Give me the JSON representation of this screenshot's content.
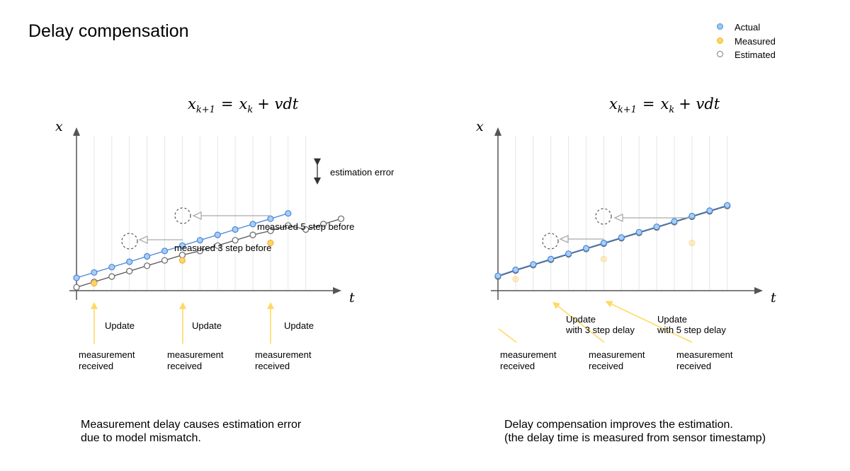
{
  "title": "Delay compensation",
  "legend": [
    {
      "label": "Actual",
      "color": "#9ec5f0",
      "stroke": "#4a90d9"
    },
    {
      "label": "Measured",
      "color": "#ffd36b",
      "stroke": "#f2b630"
    },
    {
      "label": "Estimated",
      "color": "#ffffff",
      "stroke": "#777777"
    }
  ],
  "colors": {
    "actual": "#4a86d6",
    "measured": "#f5b731",
    "estimated": "#555555",
    "arrow_yellow": "#ffd966",
    "arrow_gray": "#aaaaaa",
    "grid": "#e6e6e6"
  },
  "formula": {
    "lhs": "x",
    "lhs_sub": "k+1",
    "eq": "=",
    "rhs_var": "x",
    "rhs_sub": "k",
    "rhs_rest": "+ vdt"
  },
  "axis_labels": {
    "y": "x",
    "x": "t"
  },
  "left": {
    "estimation_error": "estimation error",
    "measured_5": "measured 5 step before",
    "measured_3": "measured 3 step before",
    "updates": [
      "Update",
      "Update",
      "Update"
    ],
    "received": [
      [
        "measurement",
        "received"
      ],
      [
        "measurement",
        "received"
      ],
      [
        "measurement",
        "received"
      ]
    ],
    "caption": [
      "Measurement delay causes estimation error",
      "due to model mismatch."
    ],
    "actual": [
      [
        0,
        0.9
      ],
      [
        1,
        1.3
      ],
      [
        2,
        1.7
      ],
      [
        3,
        2.1
      ],
      [
        4,
        2.5
      ],
      [
        5,
        2.9
      ],
      [
        6,
        3.3
      ],
      [
        7,
        3.7
      ],
      [
        8,
        4.1
      ],
      [
        9,
        4.5
      ],
      [
        10,
        4.9
      ],
      [
        11,
        5.3
      ],
      [
        12,
        5.7
      ]
    ],
    "estimated": [
      [
        0,
        0.2
      ],
      [
        1,
        0.6
      ],
      [
        2,
        1.0
      ],
      [
        3,
        1.4
      ],
      [
        4,
        1.8
      ],
      [
        5,
        2.2
      ],
      [
        6,
        2.6
      ],
      [
        7,
        2.9
      ],
      [
        8,
        3.3
      ],
      [
        9,
        3.7
      ],
      [
        10,
        4.1
      ],
      [
        11,
        4.4
      ],
      [
        12,
        4.8
      ],
      [
        13,
        4.5
      ],
      [
        14,
        4.9
      ],
      [
        15,
        5.3
      ]
    ],
    "measured": [
      [
        1,
        0.5
      ],
      [
        6,
        2.2
      ],
      [
        11,
        3.5
      ]
    ]
  },
  "right": {
    "updates": [
      [
        "Update",
        "with 3 step delay"
      ],
      [
        "Update",
        "with 5 step delay"
      ]
    ],
    "received": [
      [
        "measurement",
        "received"
      ],
      [
        "measurement",
        "received"
      ],
      [
        "measurement",
        "received"
      ]
    ],
    "caption": [
      "Delay compensation improves the estimation.",
      "(the delay time is measured from sensor timestamp)"
    ],
    "actual": [
      [
        0,
        1.05
      ],
      [
        1,
        1.5
      ],
      [
        2,
        1.9
      ],
      [
        3,
        2.3
      ],
      [
        4,
        2.7
      ],
      [
        5,
        3.1
      ],
      [
        6,
        3.5
      ],
      [
        7,
        3.9
      ],
      [
        8,
        4.3
      ],
      [
        9,
        4.7
      ],
      [
        10,
        5.1
      ],
      [
        11,
        5.5
      ],
      [
        12,
        5.9
      ],
      [
        13,
        6.3
      ]
    ],
    "estimated": [
      [
        0,
        1.0
      ],
      [
        1,
        1.45
      ],
      [
        2,
        1.85
      ],
      [
        3,
        2.25
      ],
      [
        4,
        2.65
      ],
      [
        5,
        3.05
      ],
      [
        6,
        3.45
      ],
      [
        7,
        3.85
      ],
      [
        8,
        4.25
      ],
      [
        9,
        4.65
      ],
      [
        10,
        5.05
      ],
      [
        11,
        5.45
      ],
      [
        12,
        5.85
      ],
      [
        13,
        6.25
      ]
    ],
    "measured": [
      [
        1,
        0.8
      ],
      [
        6,
        2.3
      ],
      [
        11,
        3.5
      ]
    ]
  }
}
